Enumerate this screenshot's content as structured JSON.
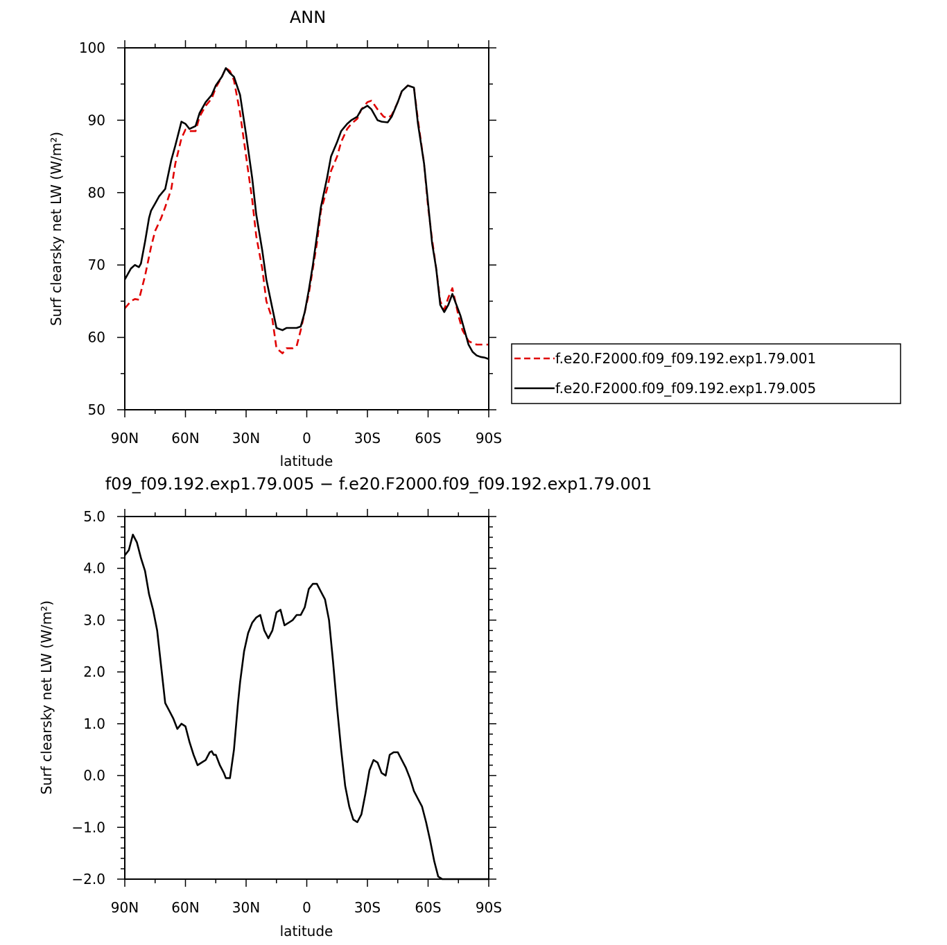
{
  "chart_data": [
    {
      "type": "line",
      "title": "ANN",
      "xlabel": "latitude",
      "ylabel": "Surf clearsky net LW (W/m²)",
      "xlim": [
        90,
        -90
      ],
      "ylim": [
        50,
        100
      ],
      "xticks": [
        90,
        60,
        30,
        0,
        -30,
        -60,
        -90
      ],
      "xtick_labels": [
        "90N",
        "60N",
        "30N",
        "0",
        "30S",
        "60S",
        "90S"
      ],
      "yticks": [
        50,
        60,
        70,
        80,
        90,
        100
      ],
      "ytick_labels": [
        "50",
        "60",
        "70",
        "80",
        "90",
        "100"
      ],
      "legend_position": "right",
      "series": [
        {
          "name": "f.e20.F2000.f09_f09.192.exp1.79.001",
          "color": "#e00000",
          "style": "dashed",
          "x": [
            90,
            87,
            85,
            83,
            80,
            77,
            75,
            72,
            70,
            67,
            65,
            62,
            60,
            58,
            55,
            53,
            50,
            47,
            45,
            42,
            40,
            38,
            36,
            33,
            30,
            27,
            25,
            22,
            20,
            17,
            15,
            12,
            10,
            7,
            5,
            3,
            1,
            -1,
            -3,
            -5,
            -7,
            -10,
            -12,
            -15,
            -17,
            -20,
            -22,
            -25,
            -27,
            -30,
            -32,
            -35,
            -38,
            -40,
            -42,
            -45,
            -47,
            -50,
            -53,
            -55,
            -58,
            -60,
            -62,
            -64,
            -66,
            -68,
            -70,
            -72,
            -75,
            -77,
            -80,
            -82,
            -84,
            -86,
            -88,
            -90
          ],
          "values": [
            64.0,
            65.0,
            65.3,
            65.2,
            68.5,
            72.5,
            74.7,
            76.5,
            78.0,
            80.5,
            84.0,
            87.5,
            88.7,
            88.5,
            88.5,
            90.5,
            92.0,
            93.0,
            94.5,
            96.0,
            97.2,
            96.8,
            95.5,
            91.0,
            85.0,
            79.0,
            74.0,
            69.5,
            65.0,
            62.5,
            58.5,
            57.8,
            58.5,
            58.5,
            58.8,
            61.0,
            63.5,
            66.0,
            69.5,
            73.0,
            77.5,
            80.5,
            83.0,
            85.0,
            87.0,
            88.8,
            89.5,
            90.2,
            91.5,
            92.5,
            92.7,
            91.5,
            90.5,
            90.3,
            90.7,
            92.5,
            94.0,
            94.8,
            94.5,
            90.0,
            84.0,
            78.0,
            73.5,
            69.5,
            65.0,
            63.8,
            65.5,
            66.8,
            63.0,
            61.0,
            59.5,
            59.2,
            59.0,
            59.0,
            59.0,
            59.0
          ]
        },
        {
          "name": "f.e20.F2000.f09_f09.192.exp1.79.005",
          "color": "#000000",
          "style": "solid",
          "x": [
            90,
            87,
            85,
            83,
            82,
            80,
            78,
            77,
            75,
            73,
            70,
            67,
            65,
            62,
            60,
            58,
            55,
            53,
            50,
            47,
            45,
            42,
            40,
            38,
            36,
            33,
            30,
            27,
            25,
            22,
            20,
            17,
            15,
            12,
            10,
            7,
            5,
            3,
            1,
            -1,
            -3,
            -5,
            -7,
            -10,
            -12,
            -15,
            -17,
            -20,
            -22,
            -25,
            -27,
            -30,
            -32,
            -35,
            -37,
            -40,
            -42,
            -45,
            -47,
            -50,
            -53,
            -55,
            -58,
            -60,
            -62,
            -64,
            -66,
            -68,
            -70,
            -72,
            -74,
            -76,
            -78,
            -80,
            -82,
            -84,
            -86,
            -88,
            -90
          ],
          "values": [
            68.0,
            69.5,
            70.0,
            69.7,
            70.2,
            73.2,
            76.5,
            77.5,
            78.5,
            79.5,
            80.5,
            84.5,
            86.5,
            89.8,
            89.5,
            88.8,
            89.2,
            91.0,
            92.5,
            93.5,
            94.8,
            96.0,
            97.2,
            96.5,
            96.0,
            93.5,
            88.0,
            82.0,
            77.0,
            72.0,
            68.0,
            64.0,
            61.3,
            61.0,
            61.3,
            61.3,
            61.3,
            61.5,
            63.5,
            66.5,
            70.0,
            74.0,
            78.0,
            82.0,
            85.0,
            87.0,
            88.5,
            89.5,
            90.0,
            90.5,
            91.5,
            92.0,
            91.5,
            90.0,
            89.8,
            89.7,
            90.5,
            92.5,
            94.0,
            94.8,
            94.5,
            89.5,
            84.0,
            78.5,
            73.0,
            69.5,
            64.5,
            63.5,
            64.5,
            66.0,
            64.5,
            63.0,
            61.0,
            59.0,
            58.0,
            57.5,
            57.3,
            57.2,
            57.0
          ]
        }
      ]
    },
    {
      "type": "line",
      "title": "f09_f09.192.exp1.79.005 − f.e20.F2000.f09_f09.192.exp1.79.001",
      "xlabel": "latitude",
      "ylabel": "Surf clearsky net LW (W/m²)",
      "xlim": [
        90,
        -90
      ],
      "ylim": [
        -2.0,
        5.0
      ],
      "xticks": [
        90,
        60,
        30,
        0,
        -30,
        -60,
        -90
      ],
      "xtick_labels": [
        "90N",
        "60N",
        "30N",
        "0",
        "30S",
        "60S",
        "90S"
      ],
      "yticks": [
        -2.0,
        -1.0,
        0.0,
        1.0,
        2.0,
        3.0,
        4.0,
        5.0
      ],
      "ytick_labels": [
        "−2.0",
        "−1.0",
        "0.0",
        "1.0",
        "2.0",
        "3.0",
        "4.0",
        "5.0"
      ],
      "series": [
        {
          "color": "#000000",
          "style": "solid",
          "x": [
            90,
            88,
            86,
            84,
            82,
            80,
            78,
            76,
            74,
            72,
            70,
            68,
            66,
            64,
            62,
            60,
            59,
            58,
            56,
            54,
            52,
            50,
            48,
            47,
            46,
            45,
            43,
            41,
            40,
            38,
            36,
            34,
            33,
            32,
            31,
            29,
            27,
            25,
            23,
            21,
            19,
            17,
            15,
            13,
            11,
            9,
            7,
            5,
            3,
            1,
            -1,
            -3,
            -5,
            -7,
            -9,
            -11,
            -13,
            -15,
            -17,
            -19,
            -21,
            -23,
            -25,
            -27,
            -29,
            -31,
            -33,
            -35,
            -37,
            -39,
            -41,
            -43,
            -45,
            -47,
            -49,
            -51,
            -53,
            -55,
            -57,
            -59,
            -61,
            -63,
            -65,
            -67,
            -69,
            -71,
            -73,
            -75,
            -77,
            -79,
            -81,
            -83,
            -85,
            -87,
            -89,
            -90
          ],
          "values": [
            4.25,
            4.35,
            4.65,
            4.5,
            4.2,
            3.95,
            3.5,
            3.2,
            2.8,
            2.1,
            1.4,
            1.25,
            1.1,
            0.9,
            1.0,
            0.95,
            0.8,
            0.65,
            0.4,
            0.2,
            0.25,
            0.3,
            0.45,
            0.47,
            0.4,
            0.4,
            0.2,
            0.05,
            -0.05,
            -0.05,
            0.5,
            1.4,
            1.8,
            2.1,
            2.4,
            2.75,
            2.95,
            3.05,
            3.1,
            2.8,
            2.65,
            2.8,
            3.15,
            3.2,
            2.9,
            2.95,
            3.0,
            3.1,
            3.1,
            3.25,
            3.6,
            3.7,
            3.7,
            3.55,
            3.4,
            3.0,
            2.2,
            1.3,
            0.5,
            -0.2,
            -0.6,
            -0.85,
            -0.9,
            -0.75,
            -0.35,
            0.1,
            0.3,
            0.25,
            0.05,
            0.0,
            0.4,
            0.45,
            0.45,
            0.3,
            0.15,
            -0.05,
            -0.3,
            -0.45,
            -0.6,
            -0.9,
            -1.25,
            -1.65,
            -1.95,
            -2.0,
            -2.0,
            -2.0,
            -2.0,
            -2.0,
            -2.0,
            -2.0,
            -2.0,
            -2.0,
            -2.0,
            -2.0,
            -2.0,
            -2.0
          ]
        }
      ]
    }
  ]
}
